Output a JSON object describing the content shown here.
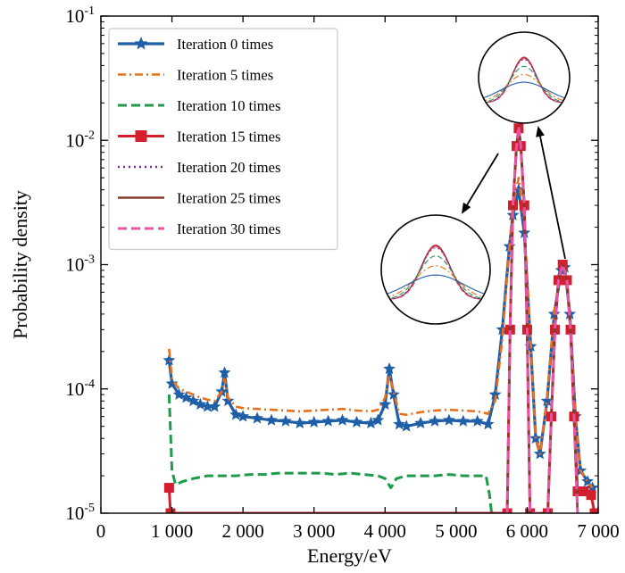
{
  "chart_data": {
    "type": "line",
    "title": "",
    "xlabel": "Energy/eV",
    "ylabel": "Probability density",
    "xlim": [
      0,
      7000
    ],
    "ylim": [
      1e-05,
      0.1
    ],
    "yscale": "log",
    "x_ticks": [
      {
        "value": 0,
        "label": "0"
      },
      {
        "value": 1000,
        "label": "1 000"
      },
      {
        "value": 2000,
        "label": "2 000"
      },
      {
        "value": 3000,
        "label": "3 000"
      },
      {
        "value": 4000,
        "label": "4 000"
      },
      {
        "value": 5000,
        "label": "5 000"
      },
      {
        "value": 6000,
        "label": "6 000"
      },
      {
        "value": 7000,
        "label": "7 000"
      }
    ],
    "y_ticks": [
      {
        "value": 1e-05,
        "base": "10",
        "exp": "-5"
      },
      {
        "value": 0.0001,
        "base": "10",
        "exp": "-4"
      },
      {
        "value": 0.001,
        "base": "10",
        "exp": "-3"
      },
      {
        "value": 0.01,
        "base": "10",
        "exp": "-2"
      },
      {
        "value": 0.1,
        "base": "10",
        "exp": "-1"
      }
    ],
    "grid": false,
    "legend_position": "top-left",
    "annotations": [
      "inset zoom of peak near 5 900 eV",
      "inset zoom of peak near 6 500 eV"
    ],
    "series": [
      {
        "name": "Iteration 0 times",
        "color": "#1f5fa8",
        "dash": "",
        "marker": "star",
        "width": 3.2,
        "points": [
          [
            960,
            0.00017
          ],
          [
            1000,
            0.00011
          ],
          [
            1100,
            9e-05
          ],
          [
            1200,
            8.5e-05
          ],
          [
            1300,
            8e-05
          ],
          [
            1400,
            7.5e-05
          ],
          [
            1500,
            7.2e-05
          ],
          [
            1600,
            7.2e-05
          ],
          [
            1700,
            9.5e-05
          ],
          [
            1740,
            0.000135
          ],
          [
            1790,
            8e-05
          ],
          [
            1900,
            6.2e-05
          ],
          [
            2000,
            6e-05
          ],
          [
            2200,
            5.8e-05
          ],
          [
            2400,
            5.6e-05
          ],
          [
            2600,
            5.5e-05
          ],
          [
            2800,
            5.3e-05
          ],
          [
            3000,
            5.4e-05
          ],
          [
            3200,
            5.5e-05
          ],
          [
            3400,
            5.6e-05
          ],
          [
            3600,
            5.4e-05
          ],
          [
            3800,
            5.3e-05
          ],
          [
            3900,
            5.6e-05
          ],
          [
            4000,
            7.5e-05
          ],
          [
            4060,
            0.000145
          ],
          [
            4120,
            9e-05
          ],
          [
            4200,
            5.2e-05
          ],
          [
            4300,
            5e-05
          ],
          [
            4500,
            5.3e-05
          ],
          [
            4700,
            5.5e-05
          ],
          [
            4900,
            5.6e-05
          ],
          [
            5100,
            5.5e-05
          ],
          [
            5300,
            5.5e-05
          ],
          [
            5450,
            5.2e-05
          ],
          [
            5550,
            9e-05
          ],
          [
            5650,
            0.0003
          ],
          [
            5750,
            0.0014
          ],
          [
            5800,
            0.0025
          ],
          [
            5880,
            0.004
          ],
          [
            5960,
            0.0018
          ],
          [
            6050,
            0.00022
          ],
          [
            6120,
            4e-05
          ],
          [
            6180,
            3e-05
          ],
          [
            6280,
            8e-05
          ],
          [
            6380,
            0.0004
          ],
          [
            6480,
            0.0009
          ],
          [
            6530,
            0.00095
          ],
          [
            6600,
            0.0004
          ],
          [
            6680,
            6e-05
          ],
          [
            6750,
            2.2e-05
          ],
          [
            6850,
            1.8e-05
          ],
          [
            6920,
            1.6e-05
          ]
        ]
      },
      {
        "name": "Iteration 5 times",
        "color": "#e8701a",
        "dash": "9,4,2,4",
        "marker": "",
        "width": 2.6,
        "points": [
          [
            960,
            0.00021
          ],
          [
            1000,
            0.00012
          ],
          [
            1100,
            0.0001
          ],
          [
            1200,
            9.5e-05
          ],
          [
            1300,
            9e-05
          ],
          [
            1400,
            8.5e-05
          ],
          [
            1500,
            8.2e-05
          ],
          [
            1600,
            8e-05
          ],
          [
            1700,
            9.5e-05
          ],
          [
            1740,
            0.00012
          ],
          [
            1790,
            8.5e-05
          ],
          [
            1900,
            7.2e-05
          ],
          [
            2000,
            7e-05
          ],
          [
            2200,
            6.9e-05
          ],
          [
            2400,
            6.8e-05
          ],
          [
            2600,
            6.7e-05
          ],
          [
            2800,
            6.6e-05
          ],
          [
            3000,
            6.7e-05
          ],
          [
            3200,
            6.8e-05
          ],
          [
            3400,
            6.9e-05
          ],
          [
            3600,
            6.7e-05
          ],
          [
            3800,
            6.6e-05
          ],
          [
            3900,
            6.8e-05
          ],
          [
            4000,
            8.5e-05
          ],
          [
            4060,
            0.00013
          ],
          [
            4120,
            9.5e-05
          ],
          [
            4200,
            6.3e-05
          ],
          [
            4300,
            6.2e-05
          ],
          [
            4500,
            6.5e-05
          ],
          [
            4700,
            6.7e-05
          ],
          [
            4900,
            6.8e-05
          ],
          [
            5100,
            6.7e-05
          ],
          [
            5300,
            6.6e-05
          ],
          [
            5450,
            6.3e-05
          ],
          [
            5550,
            8e-05
          ],
          [
            5650,
            0.00025
          ],
          [
            5750,
            0.0014
          ],
          [
            5800,
            0.003
          ],
          [
            5880,
            0.005
          ],
          [
            5960,
            0.0022
          ],
          [
            6050,
            0.00024
          ],
          [
            6120,
            4e-05
          ],
          [
            6180,
            3e-05
          ],
          [
            6280,
            8.5e-05
          ],
          [
            6380,
            0.00042
          ],
          [
            6480,
            0.00092
          ],
          [
            6530,
            0.00097
          ],
          [
            6600,
            0.00042
          ],
          [
            6680,
            6e-05
          ],
          [
            6750,
            2.2e-05
          ],
          [
            6850,
            1.8e-05
          ],
          [
            6920,
            1.6e-05
          ]
        ]
      },
      {
        "name": "Iteration 10 times",
        "color": "#1e9a48",
        "dash": "10,5",
        "marker": "",
        "width": 3.0,
        "points": [
          [
            960,
            9e-05
          ],
          [
            1000,
            2.2e-05
          ],
          [
            1050,
            1.7e-05
          ],
          [
            1150,
            1.8e-05
          ],
          [
            1300,
            1.9e-05
          ],
          [
            1500,
            2e-05
          ],
          [
            1700,
            2e-05
          ],
          [
            1900,
            2e-05
          ],
          [
            2100,
            2.05e-05
          ],
          [
            2300,
            2.05e-05
          ],
          [
            2500,
            2.1e-05
          ],
          [
            2700,
            2.1e-05
          ],
          [
            2900,
            2.1e-05
          ],
          [
            3100,
            2.1e-05
          ],
          [
            3300,
            2.05e-05
          ],
          [
            3500,
            2.1e-05
          ],
          [
            3700,
            2.05e-05
          ],
          [
            3900,
            2e-05
          ],
          [
            4000,
            1.9e-05
          ],
          [
            4080,
            1.6e-05
          ],
          [
            4160,
            1.9e-05
          ],
          [
            4300,
            2e-05
          ],
          [
            4500,
            2e-05
          ],
          [
            4700,
            2e-05
          ],
          [
            4900,
            2.05e-05
          ],
          [
            5100,
            2e-05
          ],
          [
            5300,
            2e-05
          ],
          [
            5420,
            2e-05
          ],
          [
            5470,
            1.4e-05
          ],
          [
            5500,
            1e-05
          ]
        ]
      },
      {
        "name": "Iteration 15 times",
        "color": "#d31f2d",
        "dash": "",
        "marker": "square",
        "width": 3.0,
        "points": [
          [
            960,
            1.6e-05
          ],
          [
            980,
            1e-05
          ],
          [
            5720,
            1e-05
          ],
          [
            5760,
            0.0003
          ],
          [
            5800,
            0.003
          ],
          [
            5850,
            0.009
          ],
          [
            5880,
            0.0125
          ],
          [
            5910,
            0.009
          ],
          [
            5960,
            0.003
          ],
          [
            6000,
            0.0003
          ],
          [
            6040,
            1e-05
          ],
          [
            6290,
            1e-05
          ],
          [
            6340,
            6e-05
          ],
          [
            6390,
            0.0003
          ],
          [
            6440,
            0.00075
          ],
          [
            6500,
            0.001
          ],
          [
            6560,
            0.00075
          ],
          [
            6610,
            0.0003
          ],
          [
            6660,
            6e-05
          ],
          [
            6710,
            1.5e-05
          ],
          [
            6800,
            1.5e-05
          ],
          [
            6900,
            1.4e-05
          ],
          [
            6950,
            1e-05
          ]
        ]
      },
      {
        "name": "Iteration 20 times",
        "color": "#7b2d8e",
        "dash": "2,4",
        "marker": "",
        "width": 2.6,
        "points": [
          [
            5720,
            1e-05
          ],
          [
            5760,
            0.0003
          ],
          [
            5800,
            0.003
          ],
          [
            5850,
            0.009
          ],
          [
            5880,
            0.013
          ],
          [
            5910,
            0.009
          ],
          [
            5960,
            0.003
          ],
          [
            6000,
            0.0003
          ],
          [
            6040,
            1e-05
          ],
          [
            6290,
            1e-05
          ],
          [
            6340,
            6e-05
          ],
          [
            6390,
            0.0003
          ],
          [
            6440,
            0.00075
          ],
          [
            6500,
            0.001
          ],
          [
            6560,
            0.00075
          ],
          [
            6610,
            0.0003
          ],
          [
            6660,
            6e-05
          ],
          [
            6710,
            1e-05
          ]
        ]
      },
      {
        "name": "Iteration 25 times",
        "color": "#8b3a2a",
        "dash": "",
        "marker": "",
        "width": 2.6,
        "points": [
          [
            5720,
            1e-05
          ],
          [
            5760,
            0.0003
          ],
          [
            5800,
            0.003
          ],
          [
            5850,
            0.009
          ],
          [
            5880,
            0.013
          ],
          [
            5910,
            0.009
          ],
          [
            5960,
            0.003
          ],
          [
            6000,
            0.0003
          ],
          [
            6040,
            1e-05
          ],
          [
            6290,
            1e-05
          ],
          [
            6340,
            6e-05
          ],
          [
            6390,
            0.0003
          ],
          [
            6440,
            0.00075
          ],
          [
            6500,
            0.001
          ],
          [
            6560,
            0.00075
          ],
          [
            6610,
            0.0003
          ],
          [
            6660,
            6e-05
          ],
          [
            6710,
            1e-05
          ]
        ]
      },
      {
        "name": "Iteration 30 times",
        "color": "#e356a3",
        "dash": "10,5",
        "marker": "",
        "width": 3.0,
        "points": [
          [
            5720,
            1e-05
          ],
          [
            5760,
            0.0003
          ],
          [
            5800,
            0.003
          ],
          [
            5850,
            0.009
          ],
          [
            5880,
            0.013
          ],
          [
            5910,
            0.009
          ],
          [
            5960,
            0.003
          ],
          [
            6000,
            0.0003
          ],
          [
            6040,
            1e-05
          ],
          [
            6290,
            1e-05
          ],
          [
            6340,
            6e-05
          ],
          [
            6390,
            0.0003
          ],
          [
            6440,
            0.00075
          ],
          [
            6500,
            0.001
          ],
          [
            6560,
            0.00075
          ],
          [
            6610,
            0.0003
          ],
          [
            6660,
            6e-05
          ],
          [
            6710,
            1e-05
          ]
        ]
      }
    ]
  }
}
